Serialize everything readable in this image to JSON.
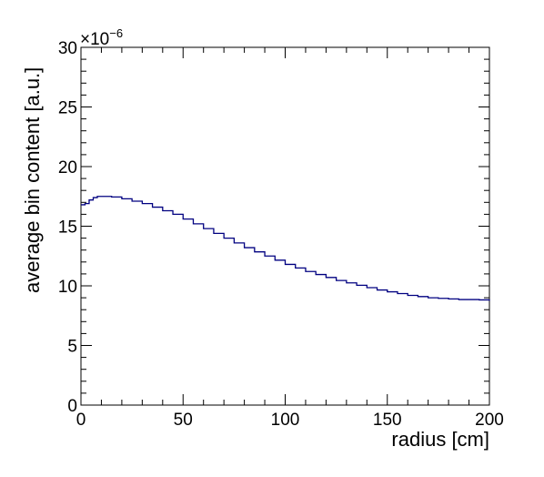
{
  "chart_data": {
    "type": "line",
    "xlabel": "radius [cm]",
    "ylabel": "average bin content [a.u.]",
    "y_multiplier": {
      "base": "×10",
      "exponent": "−6"
    },
    "xlim": [
      0,
      200
    ],
    "ylim": [
      0,
      30
    ],
    "x_ticks": [
      {
        "value": 0,
        "label": "0"
      },
      {
        "value": 50,
        "label": "50"
      },
      {
        "value": 100,
        "label": "100"
      },
      {
        "value": 150,
        "label": "150"
      },
      {
        "value": 200,
        "label": "200"
      }
    ],
    "y_ticks": [
      {
        "value": 0,
        "label": "0"
      },
      {
        "value": 5,
        "label": "5"
      },
      {
        "value": 10,
        "label": "10"
      },
      {
        "value": 15,
        "label": "15"
      },
      {
        "value": 20,
        "label": "20"
      },
      {
        "value": 25,
        "label": "25"
      },
      {
        "value": 30,
        "label": "30"
      }
    ],
    "grid": false,
    "line_color": "#000080",
    "series": [
      {
        "x": [
          0,
          2,
          4,
          6,
          8,
          10,
          15,
          20,
          25,
          30,
          35,
          40,
          45,
          50,
          55,
          60,
          65,
          70,
          75,
          80,
          85,
          90,
          95,
          100,
          105,
          110,
          115,
          120,
          125,
          130,
          135,
          140,
          145,
          150,
          155,
          160,
          165,
          170,
          175,
          180,
          185,
          190,
          195,
          200
        ],
        "y": [
          16.8,
          16.9,
          17.2,
          17.4,
          17.5,
          17.5,
          17.45,
          17.3,
          17.1,
          16.9,
          16.6,
          16.3,
          16.0,
          15.6,
          15.2,
          14.8,
          14.4,
          14.0,
          13.6,
          13.2,
          12.85,
          12.5,
          12.15,
          11.8,
          11.5,
          11.2,
          10.95,
          10.7,
          10.45,
          10.25,
          10.05,
          9.85,
          9.65,
          9.5,
          9.35,
          9.2,
          9.1,
          9.0,
          8.95,
          8.9,
          8.85,
          8.85,
          8.82,
          8.75
        ]
      }
    ]
  }
}
